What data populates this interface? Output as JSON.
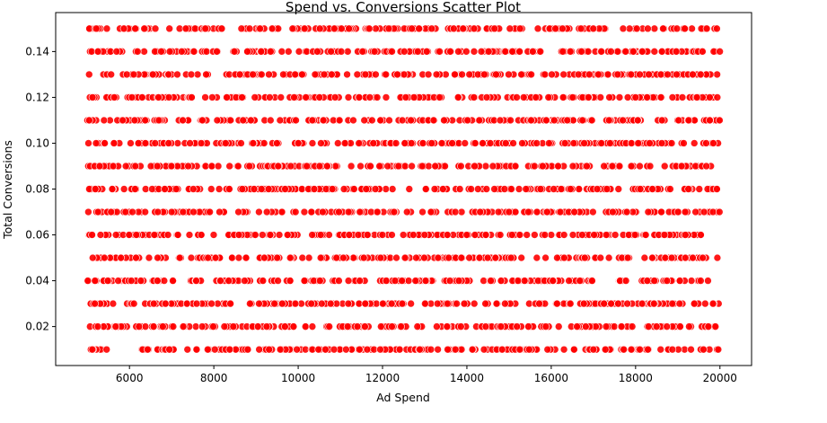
{
  "chart_data": {
    "type": "scatter",
    "title": "Spend vs. Conversions Scatter Plot",
    "xlabel": "Ad Spend",
    "ylabel": "Total Conversions",
    "xlim": [
      4250,
      20750
    ],
    "ylim": [
      0.003,
      0.157
    ],
    "xticks": [
      6000,
      8000,
      10000,
      12000,
      14000,
      16000,
      18000,
      20000
    ],
    "xtick_labels": [
      "6000",
      "8000",
      "10000",
      "12000",
      "14000",
      "16000",
      "18000",
      "20000"
    ],
    "yticks": [
      0.02,
      0.04,
      0.06,
      0.08,
      0.1,
      0.12,
      0.14
    ],
    "ytick_labels": [
      "0.02",
      "0.04",
      "0.06",
      "0.08",
      "0.10",
      "0.12",
      "0.14"
    ],
    "grid": false,
    "legend": "none",
    "marker_color": "#ff0000",
    "marker_edge_color": "#ffffff",
    "series": [
      {
        "x_range": [
          5000,
          20000
        ],
        "y_levels": [
          0.01,
          0.02,
          0.03,
          0.04,
          0.05,
          0.06,
          0.07,
          0.08,
          0.09,
          0.1,
          0.11,
          0.12,
          0.13,
          0.14,
          0.15
        ],
        "description_note": ""
      }
    ]
  }
}
